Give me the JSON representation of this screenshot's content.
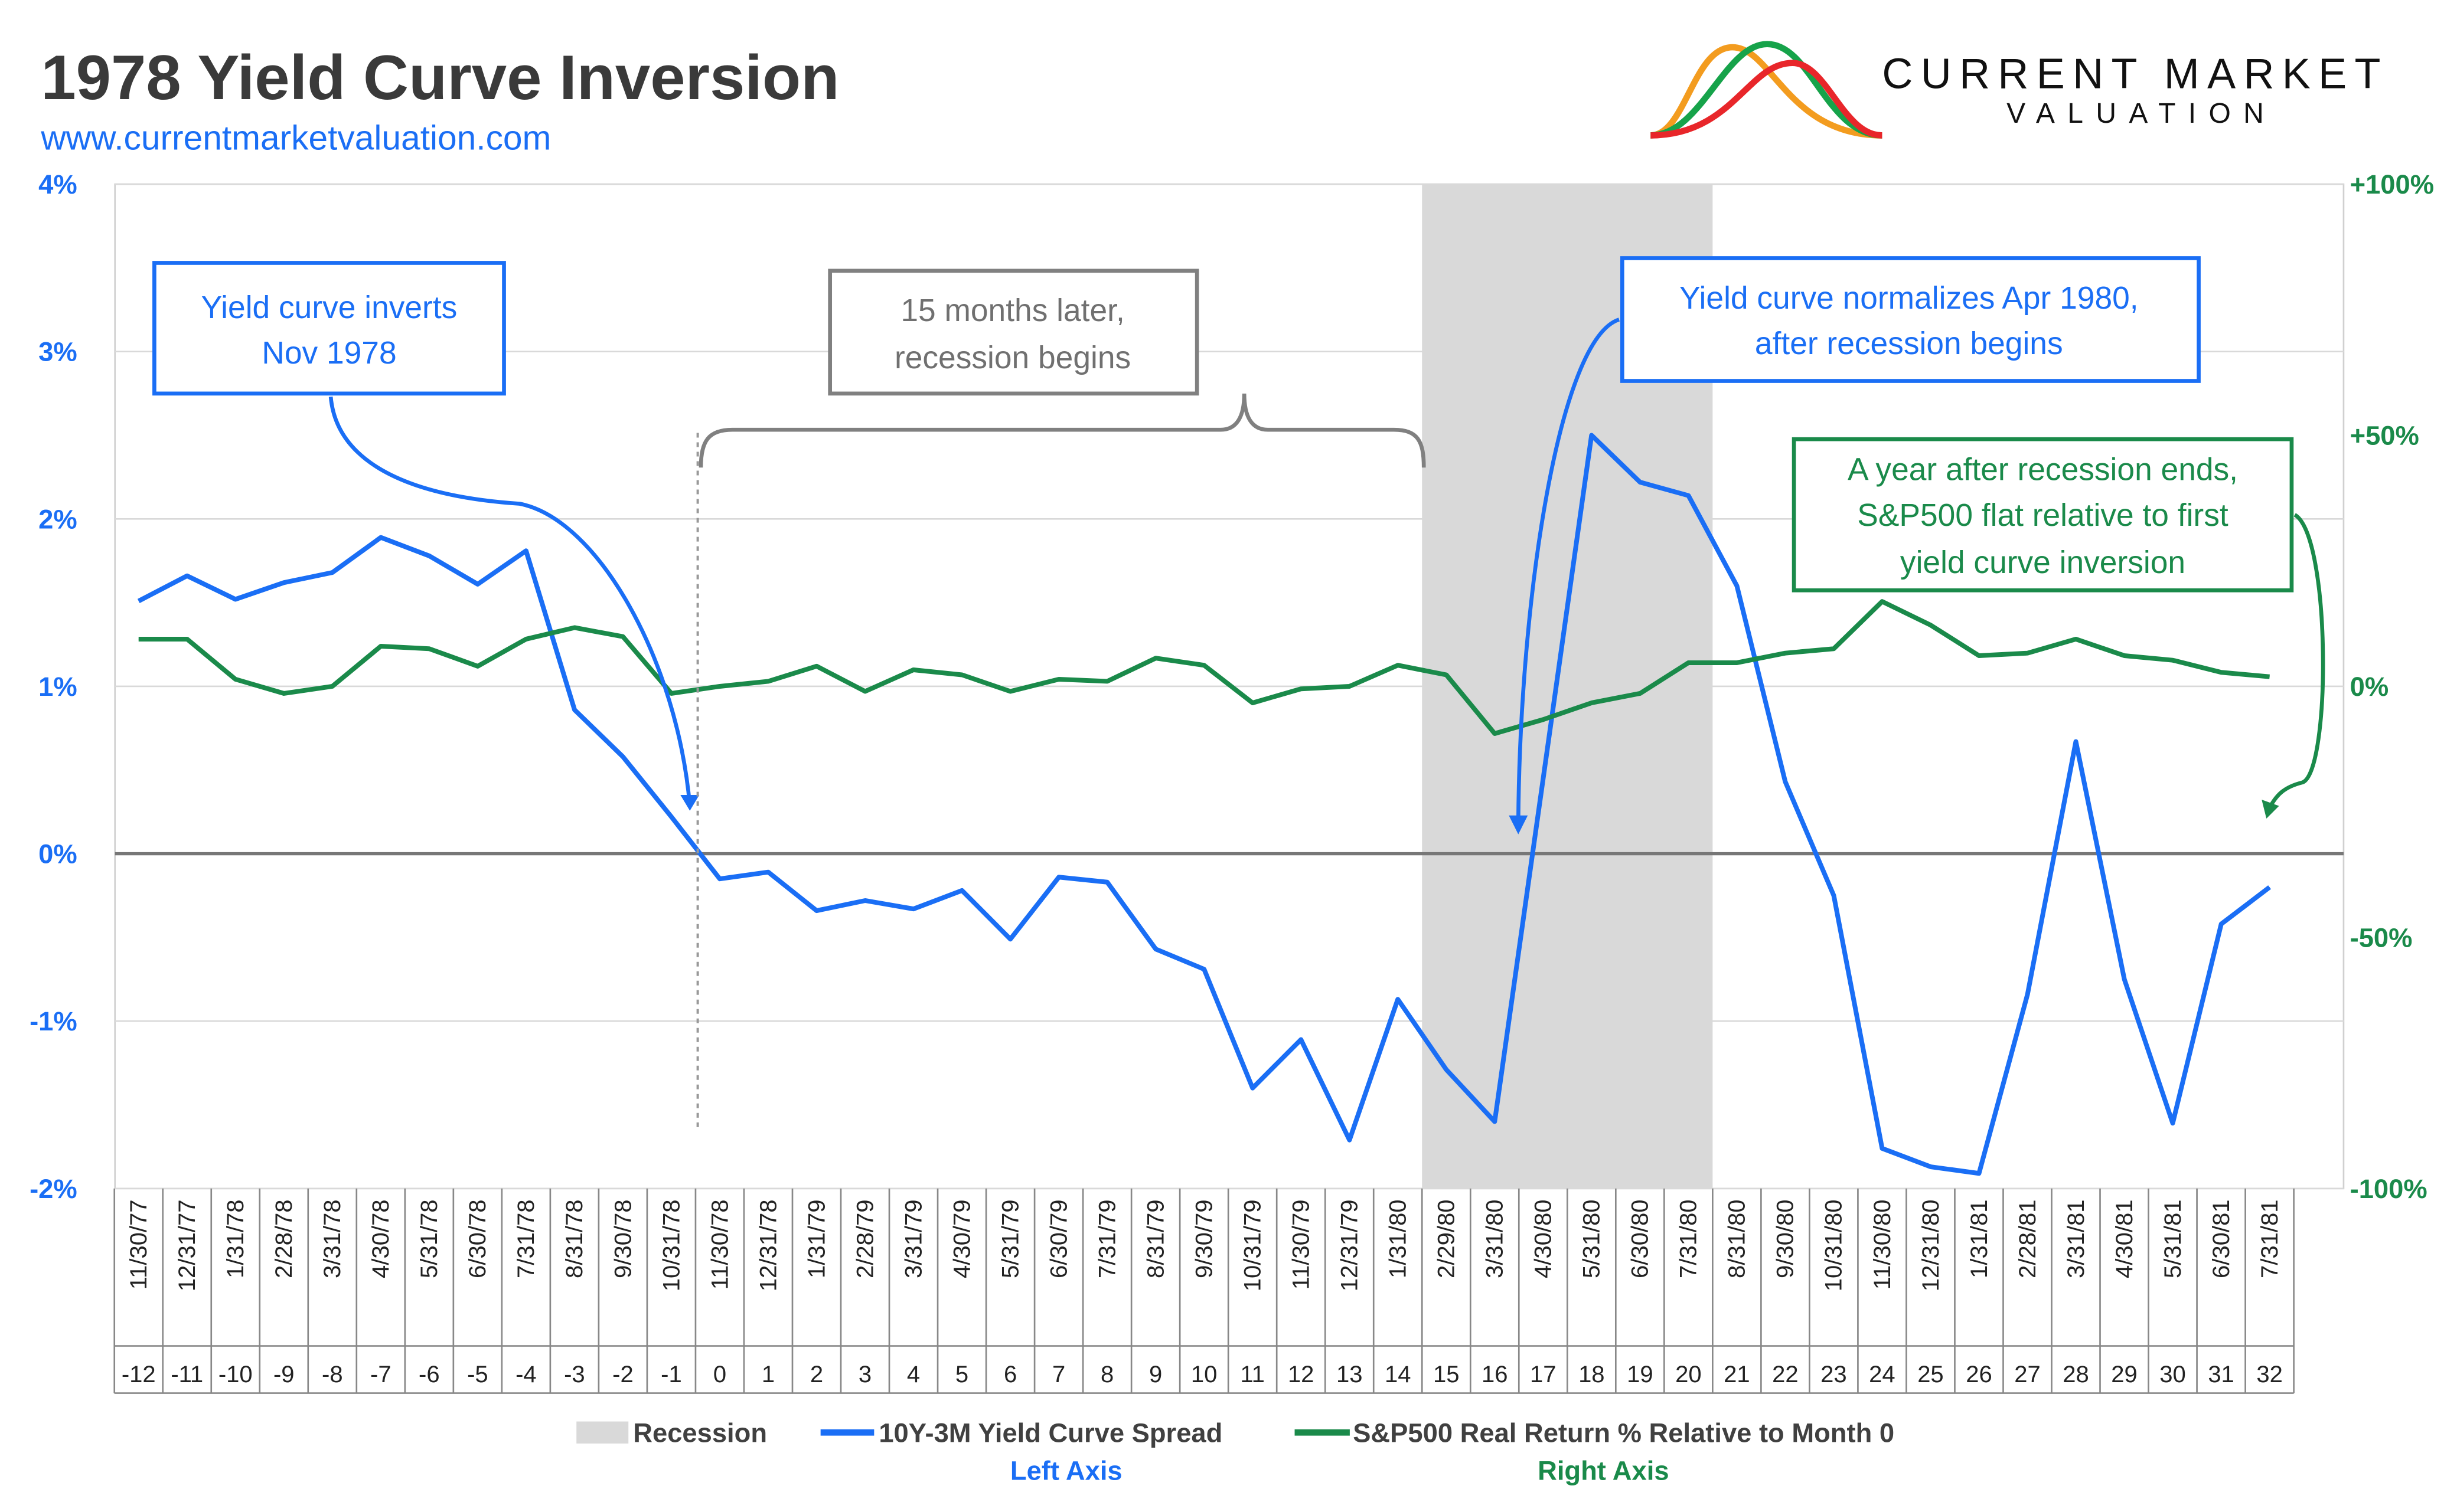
{
  "header": {
    "title": "1978 Yield Curve Inversion",
    "url": "www.currentmarketvaluation.com",
    "logo": {
      "line1": "CURRENT MARKET",
      "line2": "VALUATION",
      "colors": [
        "#f39c1f",
        "#16a34a",
        "#e8262a"
      ]
    }
  },
  "chart_data": {
    "type": "line",
    "title": "1978 Yield Curve Inversion",
    "categories": [
      "11/30/77",
      "12/31/77",
      "1/31/78",
      "2/28/78",
      "3/31/78",
      "4/30/78",
      "5/31/78",
      "6/30/78",
      "7/31/78",
      "8/31/78",
      "9/30/78",
      "10/31/78",
      "11/30/78",
      "12/31/78",
      "1/31/79",
      "2/28/79",
      "3/31/79",
      "4/30/79",
      "5/31/79",
      "6/30/79",
      "7/31/79",
      "8/31/79",
      "9/30/79",
      "10/31/79",
      "11/30/79",
      "12/31/79",
      "1/31/80",
      "2/29/80",
      "3/31/80",
      "4/30/80",
      "5/31/80",
      "6/30/80",
      "7/31/80",
      "8/31/80",
      "9/30/80",
      "10/31/80",
      "11/30/80",
      "12/31/80",
      "1/31/81",
      "2/28/81",
      "3/31/81",
      "4/30/81",
      "5/31/81",
      "6/30/81",
      "7/31/81"
    ],
    "months": [
      "-12",
      "-11",
      "-10",
      "-9",
      "-8",
      "-7",
      "-6",
      "-5",
      "-4",
      "-3",
      "-2",
      "-1",
      "0",
      "1",
      "2",
      "3",
      "4",
      "5",
      "6",
      "7",
      "8",
      "9",
      "10",
      "11",
      "12",
      "13",
      "14",
      "15",
      "16",
      "17",
      "18",
      "19",
      "20",
      "21",
      "22",
      "23",
      "24",
      "25",
      "26",
      "27",
      "28",
      "29",
      "30",
      "31",
      "32"
    ],
    "left_axis": {
      "ylim": [
        -2,
        4
      ],
      "ticks": [
        "-2%",
        "-1%",
        "0%",
        "1%",
        "2%",
        "3%",
        "4%"
      ],
      "color": "#1a6ef5"
    },
    "right_axis": {
      "ylim": [
        -100,
        100
      ],
      "ticks": [
        "-100%",
        "-50%",
        "0%",
        "+50%",
        "+100%"
      ],
      "color": "#1a8a4a"
    },
    "grid": true,
    "recession": {
      "start": "2/29/80",
      "end": "7/31/80",
      "color": "#d9d9d9"
    },
    "series": [
      {
        "name": "10Y-3M Yield Curve Spread",
        "axis": "left",
        "color": "#1a6ef5",
        "values": [
          1.51,
          1.66,
          1.52,
          1.62,
          1.68,
          1.89,
          1.78,
          1.61,
          1.81,
          0.86,
          0.58,
          0.22,
          -0.15,
          -0.11,
          -0.34,
          -0.28,
          -0.33,
          -0.22,
          -0.51,
          -0.14,
          -0.17,
          -0.57,
          -0.69,
          -1.4,
          -1.11,
          -1.71,
          -0.87,
          -1.29,
          -1.6,
          0.45,
          2.5,
          2.22,
          2.14,
          1.6,
          0.43,
          -0.25,
          -1.76,
          -1.87,
          -1.91,
          -0.84,
          0.67,
          -0.75,
          -1.61,
          -0.42,
          -0.2
        ]
      },
      {
        "name": "S&P500 Real Return % Relative to Month 0",
        "axis": "right",
        "color": "#1a8a4a",
        "values": [
          9.4,
          9.4,
          1.4,
          -1.4,
          0,
          8,
          7.5,
          4,
          9.4,
          11.7,
          9.9,
          -1.4,
          0,
          1,
          4,
          -1,
          3.3,
          2.3,
          -1,
          1.4,
          1,
          5.6,
          4.2,
          -3.3,
          -0.5,
          0,
          4.2,
          2.3,
          -9.4,
          -6.6,
          -3.3,
          -1.4,
          4.7,
          4.7,
          6.6,
          7.5,
          16.9,
          12.2,
          6.1,
          6.6,
          9.4,
          6.1,
          5.2,
          2.8,
          1.9
        ]
      }
    ],
    "legend": {
      "position": "bottom",
      "recession_label": "Recession",
      "left_note": "Left Axis",
      "right_note": "Right Axis"
    },
    "annotations": {
      "inversion": [
        "Yield curve inverts",
        "Nov 1978"
      ],
      "later": [
        "15 months later,",
        "recession begins"
      ],
      "normalizes": [
        "Yield curve normalizes Apr 1980,",
        "after recession begins"
      ],
      "year_after": [
        "A year after recession ends,",
        "S&P500 flat relative to first",
        "yield curve inversion"
      ]
    }
  }
}
